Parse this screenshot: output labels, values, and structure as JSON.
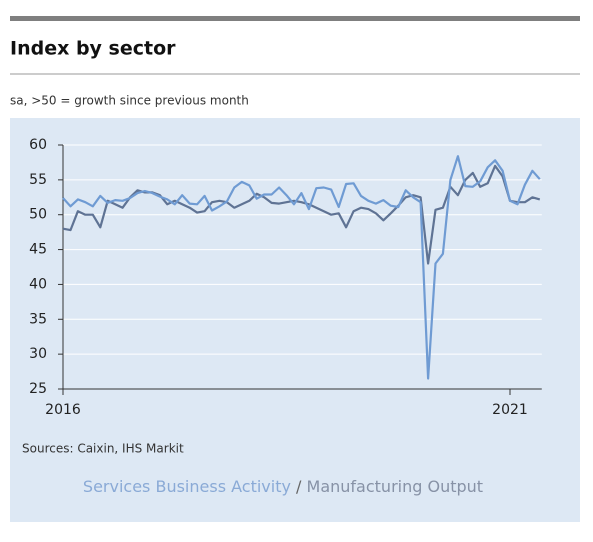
{
  "header": {
    "title": "Index by sector",
    "subtitle": "sa, >50 = growth since previous month"
  },
  "chart_data": {
    "type": "line",
    "categories": [
      "2016",
      null,
      null,
      null,
      null,
      null,
      null,
      null,
      null,
      null,
      null,
      null,
      null,
      null,
      null,
      null,
      null,
      null,
      null,
      null,
      null,
      null,
      null,
      null,
      null,
      null,
      null,
      null,
      null,
      null,
      null,
      null,
      null,
      null,
      null,
      null,
      null,
      null,
      null,
      null,
      null,
      null,
      null,
      null,
      null,
      null,
      null,
      null,
      null,
      null,
      null,
      null,
      null,
      null,
      null,
      null,
      null,
      null,
      null,
      null,
      "2021",
      null,
      null,
      null,
      null
    ],
    "series": [
      {
        "name": "Services Business Activity",
        "color": "#6f9bd3",
        "values": [
          52.4,
          51.2,
          52.2,
          51.8,
          51.2,
          52.7,
          51.7,
          52.1,
          52.0,
          52.4,
          53.1,
          53.4,
          53.1,
          52.6,
          52.2,
          51.5,
          52.8,
          51.6,
          51.5,
          52.7,
          50.6,
          51.2,
          51.9,
          53.9,
          54.7,
          54.2,
          52.3,
          52.9,
          52.9,
          53.9,
          52.8,
          51.5,
          53.1,
          50.8,
          53.8,
          53.9,
          53.6,
          51.1,
          54.4,
          54.5,
          52.7,
          52.0,
          51.6,
          52.1,
          51.3,
          51.1,
          53.5,
          52.5,
          51.8,
          26.5,
          43.0,
          44.4,
          55.0,
          58.4,
          54.1,
          54.0,
          54.8,
          56.8,
          57.8,
          56.3,
          52.0,
          51.5,
          54.3,
          56.3,
          55.1
        ]
      },
      {
        "name": "Manufacturing Output",
        "color": "#5f7394",
        "values": [
          48.0,
          47.8,
          50.5,
          50.0,
          50.0,
          48.2,
          52.0,
          51.5,
          51.0,
          52.5,
          53.5,
          53.2,
          53.2,
          52.8,
          51.5,
          52.0,
          51.5,
          51.0,
          50.3,
          50.5,
          51.8,
          52.0,
          51.8,
          51.0,
          51.5,
          52.0,
          53.0,
          52.5,
          51.7,
          51.6,
          51.8,
          52.0,
          51.8,
          51.5,
          51.0,
          50.5,
          50.0,
          50.2,
          48.2,
          50.5,
          51.0,
          50.8,
          50.2,
          49.2,
          50.2,
          51.3,
          52.5,
          52.8,
          52.5,
          43.0,
          50.7,
          51.0,
          54.0,
          52.8,
          55.0,
          56.0,
          54.0,
          54.5,
          57.0,
          55.5,
          52.0,
          51.8,
          51.8,
          52.5,
          52.2
        ]
      }
    ],
    "ylim": [
      25,
      60
    ],
    "yticks": [
      25,
      30,
      35,
      40,
      45,
      50,
      55,
      60
    ],
    "grid": true,
    "source": "Sources: Caixin, IHS Markit",
    "legend_separator": "/"
  }
}
